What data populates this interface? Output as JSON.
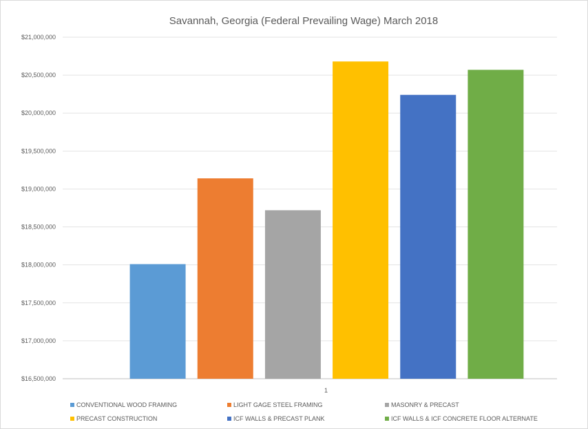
{
  "chart_data": {
    "type": "bar",
    "title": "Savannah, Georgia (Federal Prevailing Wage) March 2018",
    "xlabel": "",
    "ylabel": "",
    "categories": [
      "1"
    ],
    "ylim": [
      16500000,
      21000000
    ],
    "ytick_step": 500000,
    "ytick_labels": [
      "$16,500,000",
      "$17,000,000",
      "$17,500,000",
      "$18,000,000",
      "$18,500,000",
      "$19,000,000",
      "$19,500,000",
      "$20,000,000",
      "$20,500,000",
      "$21,000,000"
    ],
    "grid": true,
    "legend_position": "bottom",
    "series": [
      {
        "name": "CONVENTIONAL WOOD FRAMING",
        "values": [
          18010000
        ],
        "color": "#5B9BD5"
      },
      {
        "name": "LIGHT GAGE STEEL FRAMING",
        "values": [
          19140000
        ],
        "color": "#ED7D31"
      },
      {
        "name": "MASONRY & PRECAST",
        "values": [
          18720000
        ],
        "color": "#A5A5A5"
      },
      {
        "name": "PRECAST CONSTRUCTION",
        "values": [
          20680000
        ],
        "color": "#FFC000"
      },
      {
        "name": "ICF WALLS & PRECAST PLANK",
        "values": [
          20240000
        ],
        "color": "#4472C4"
      },
      {
        "name": "ICF WALLS & ICF CONCRETE FLOOR ALTERNATE",
        "values": [
          20570000
        ],
        "color": "#70AD47"
      }
    ]
  }
}
